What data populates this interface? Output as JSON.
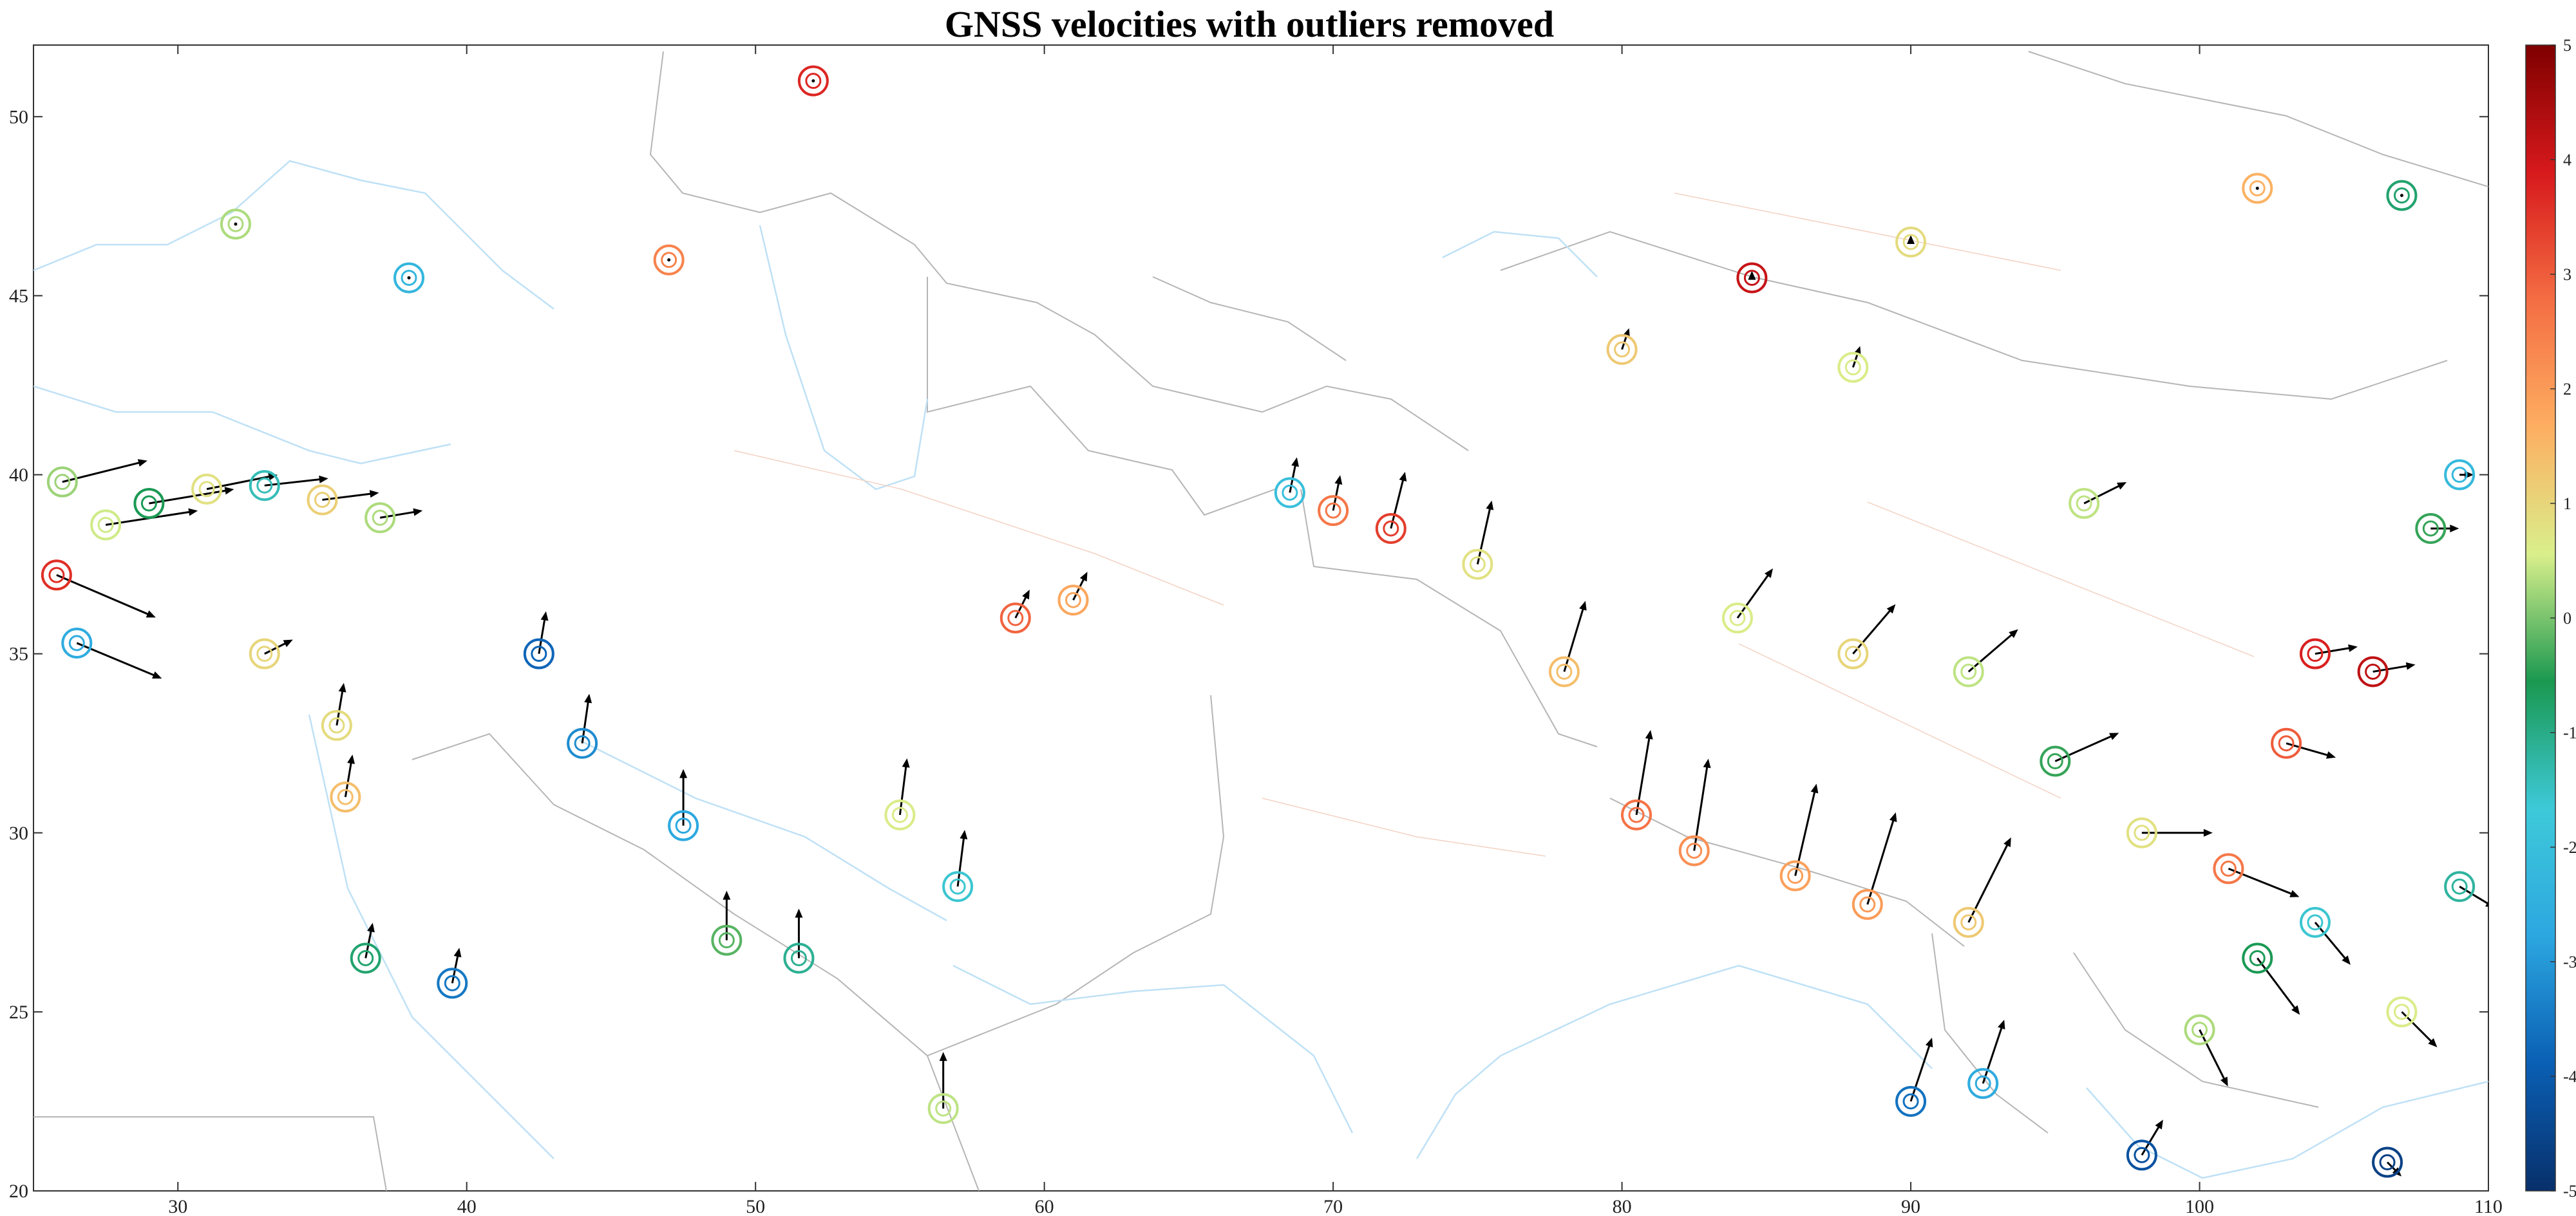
{
  "chart_data": {
    "type": "scatter",
    "title": "GNSS velocities with outliers removed",
    "xlabel": "",
    "ylabel": "",
    "xlim": [
      25,
      110
    ],
    "ylim": [
      20,
      52
    ],
    "xticks": [
      30,
      40,
      50,
      60,
      70,
      80,
      90,
      100,
      110
    ],
    "yticks": [
      20,
      25,
      30,
      35,
      40,
      45,
      50
    ],
    "grid": false,
    "colorbar": {
      "position": "right",
      "range": [
        -5,
        5
      ],
      "ticks": [
        5,
        4,
        3,
        2,
        1,
        0,
        -1,
        -2,
        -3,
        -4,
        -5
      ],
      "colormap": [
        "#7f0000",
        "#d7191c",
        "#f46d43",
        "#fdae61",
        "#d9ef8b",
        "#1a9850",
        "#3ec9d9",
        "#2ca7e0",
        "#0a5fb4",
        "#08306b"
      ]
    },
    "stations": [
      {
        "lon": 26,
        "lat": 39.8,
        "ve": 1.2,
        "vn": 0.3,
        "vu": 0.2
      },
      {
        "lon": 27.5,
        "lat": 38.6,
        "ve": 1.3,
        "vn": 0.2,
        "vu": 0.5
      },
      {
        "lon": 29,
        "lat": 39.2,
        "ve": 1.2,
        "vn": 0.2,
        "vu": -0.6
      },
      {
        "lon": 31,
        "lat": 39.6,
        "ve": 1.0,
        "vn": 0.2,
        "vu": 0.8
      },
      {
        "lon": 33,
        "lat": 39.7,
        "ve": 0.9,
        "vn": 0.1,
        "vu": -1.4
      },
      {
        "lon": 35,
        "lat": 39.3,
        "ve": 0.8,
        "vn": 0.1,
        "vu": 1.1
      },
      {
        "lon": 37,
        "lat": 38.8,
        "ve": 0.6,
        "vn": 0.1,
        "vu": 0.3
      },
      {
        "lon": 25.8,
        "lat": 37.2,
        "ve": 1.4,
        "vn": -0.6,
        "vu": 3.6
      },
      {
        "lon": 26.5,
        "lat": 35.3,
        "ve": 1.2,
        "vn": -0.5,
        "vu": -2.6
      },
      {
        "lon": 33,
        "lat": 35.0,
        "ve": 0.4,
        "vn": 0.2,
        "vu": 1.0
      },
      {
        "lon": 35.5,
        "lat": 33.0,
        "ve": 0.1,
        "vn": 0.6,
        "vu": 0.9
      },
      {
        "lon": 35.8,
        "lat": 31.0,
        "ve": 0.1,
        "vn": 0.6,
        "vu": 1.4
      },
      {
        "lon": 36.5,
        "lat": 26.5,
        "ve": 0.1,
        "vn": 0.5,
        "vu": -0.8
      },
      {
        "lon": 39.5,
        "lat": 25.8,
        "ve": 0.1,
        "vn": 0.5,
        "vu": -3.5
      },
      {
        "lon": 42.5,
        "lat": 35.0,
        "ve": 0.1,
        "vn": 0.6,
        "vu": -3.8
      },
      {
        "lon": 44,
        "lat": 32.5,
        "ve": 0.1,
        "vn": 0.7,
        "vu": -3.2
      },
      {
        "lon": 47.5,
        "lat": 30.2,
        "ve": 0.0,
        "vn": 0.8,
        "vu": -2.7
      },
      {
        "lon": 49,
        "lat": 27.0,
        "ve": 0.0,
        "vn": 0.7,
        "vu": -0.2
      },
      {
        "lon": 51.5,
        "lat": 26.5,
        "ve": 0.0,
        "vn": 0.7,
        "vu": -1.1
      },
      {
        "lon": 55,
        "lat": 30.5,
        "ve": 0.1,
        "vn": 0.8,
        "vu": 0.6
      },
      {
        "lon": 57,
        "lat": 28.5,
        "ve": 0.1,
        "vn": 0.8,
        "vu": -1.6
      },
      {
        "lon": 56.5,
        "lat": 22.3,
        "ve": 0.0,
        "vn": 0.8,
        "vu": 0.4
      },
      {
        "lon": 59,
        "lat": 36.0,
        "ve": 0.2,
        "vn": 0.4,
        "vu": 2.9
      },
      {
        "lon": 61,
        "lat": 36.5,
        "ve": 0.2,
        "vn": 0.4,
        "vu": 1.8
      },
      {
        "lon": 47,
        "lat": 46.0,
        "ve": 0.0,
        "vn": 0.0,
        "vu": 2.4
      },
      {
        "lon": 52,
        "lat": 51.0,
        "ve": 0.0,
        "vn": 0.0,
        "vu": 3.7
      },
      {
        "lon": 32,
        "lat": 47.0,
        "ve": 0.0,
        "vn": 0.0,
        "vu": 0.3
      },
      {
        "lon": 38,
        "lat": 45.5,
        "ve": 0.0,
        "vn": 0.0,
        "vu": -2.3
      },
      {
        "lon": 72,
        "lat": 38.5,
        "ve": 0.2,
        "vn": 0.8,
        "vu": 3.4
      },
      {
        "lon": 75,
        "lat": 37.5,
        "ve": 0.2,
        "vn": 0.9,
        "vu": 0.8
      },
      {
        "lon": 78,
        "lat": 34.5,
        "ve": 0.3,
        "vn": 1.0,
        "vu": 1.4
      },
      {
        "lon": 80.5,
        "lat": 30.5,
        "ve": 0.2,
        "vn": 1.2,
        "vu": 2.7
      },
      {
        "lon": 82.5,
        "lat": 29.5,
        "ve": 0.2,
        "vn": 1.3,
        "vu": 2.2
      },
      {
        "lon": 86,
        "lat": 28.8,
        "ve": 0.3,
        "vn": 1.3,
        "vu": 1.9
      },
      {
        "lon": 88.5,
        "lat": 28.0,
        "ve": 0.4,
        "vn": 1.3,
        "vu": 2.0
      },
      {
        "lon": 92,
        "lat": 27.5,
        "ve": 0.6,
        "vn": 1.2,
        "vu": 1.2
      },
      {
        "lon": 84,
        "lat": 36.0,
        "ve": 0.5,
        "vn": 0.7,
        "vu": 0.6
      },
      {
        "lon": 88,
        "lat": 35.0,
        "ve": 0.6,
        "vn": 0.7,
        "vu": 1.0
      },
      {
        "lon": 92,
        "lat": 34.5,
        "ve": 0.7,
        "vn": 0.6,
        "vu": 0.4
      },
      {
        "lon": 95,
        "lat": 32.0,
        "ve": 0.9,
        "vn": 0.4,
        "vu": -0.4
      },
      {
        "lon": 98,
        "lat": 30.0,
        "ve": 1.0,
        "vn": 0.0,
        "vu": 0.8
      },
      {
        "lon": 101,
        "lat": 29.0,
        "ve": 1.0,
        "vn": -0.4,
        "vu": 2.6
      },
      {
        "lon": 104,
        "lat": 35.0,
        "ve": 0.6,
        "vn": 0.1,
        "vu": 3.8
      },
      {
        "lon": 106,
        "lat": 34.5,
        "ve": 0.6,
        "vn": 0.1,
        "vu": 4.2
      },
      {
        "lon": 103,
        "lat": 32.5,
        "ve": 0.7,
        "vn": -0.2,
        "vu": 3.0
      },
      {
        "lon": 102,
        "lat": 26.5,
        "ve": 0.6,
        "vn": -0.8,
        "vu": -0.6
      },
      {
        "lon": 100,
        "lat": 24.5,
        "ve": 0.4,
        "vn": -0.8,
        "vu": 0.3
      },
      {
        "lon": 104,
        "lat": 27.5,
        "ve": 0.5,
        "vn": -0.6,
        "vu": -1.6
      },
      {
        "lon": 107,
        "lat": 25.0,
        "ve": 0.5,
        "vn": -0.5,
        "vu": 0.6
      },
      {
        "lon": 109,
        "lat": 28.5,
        "ve": 0.5,
        "vn": -0.3,
        "vu": -1.2
      },
      {
        "lon": 108,
        "lat": 38.5,
        "ve": 0.4,
        "vn": 0.0,
        "vu": -0.4
      },
      {
        "lon": 96,
        "lat": 39.2,
        "ve": 0.6,
        "vn": 0.3,
        "vu": 0.4
      },
      {
        "lon": 88,
        "lat": 43.0,
        "ve": 0.1,
        "vn": 0.3,
        "vu": 0.6
      },
      {
        "lon": 84.5,
        "lat": 45.5,
        "ve": 0.0,
        "vn": 0.1,
        "vu": 4.1
      },
      {
        "lon": 90,
        "lat": 46.5,
        "ve": 0.0,
        "vn": 0.1,
        "vu": 0.9
      },
      {
        "lon": 80,
        "lat": 43.5,
        "ve": 0.1,
        "vn": 0.3,
        "vu": 1.2
      },
      {
        "lon": 70,
        "lat": 39.0,
        "ve": 0.1,
        "vn": 0.5,
        "vu": 2.6
      },
      {
        "lon": 68.5,
        "lat": 39.5,
        "ve": 0.1,
        "vn": 0.5,
        "vu": -2.0
      },
      {
        "lon": 90,
        "lat": 22.5,
        "ve": 0.3,
        "vn": 0.9,
        "vu": -3.6
      },
      {
        "lon": 92.5,
        "lat": 23.0,
        "ve": 0.3,
        "vn": 0.9,
        "vu": -2.6
      },
      {
        "lon": 98,
        "lat": 21.0,
        "ve": 0.3,
        "vn": 0.5,
        "vu": -4.2
      },
      {
        "lon": 106.5,
        "lat": 20.8,
        "ve": 0.2,
        "vn": -0.2,
        "vu": -4.6
      },
      {
        "lon": 102,
        "lat": 48.0,
        "ve": 0.0,
        "vn": 0.0,
        "vu": 1.6
      },
      {
        "lon": 107,
        "lat": 47.8,
        "ve": 0.0,
        "vn": 0.0,
        "vu": -0.8
      },
      {
        "lon": 109,
        "lat": 40.0,
        "ve": 0.2,
        "vn": 0.0,
        "vu": -2.2
      }
    ]
  }
}
